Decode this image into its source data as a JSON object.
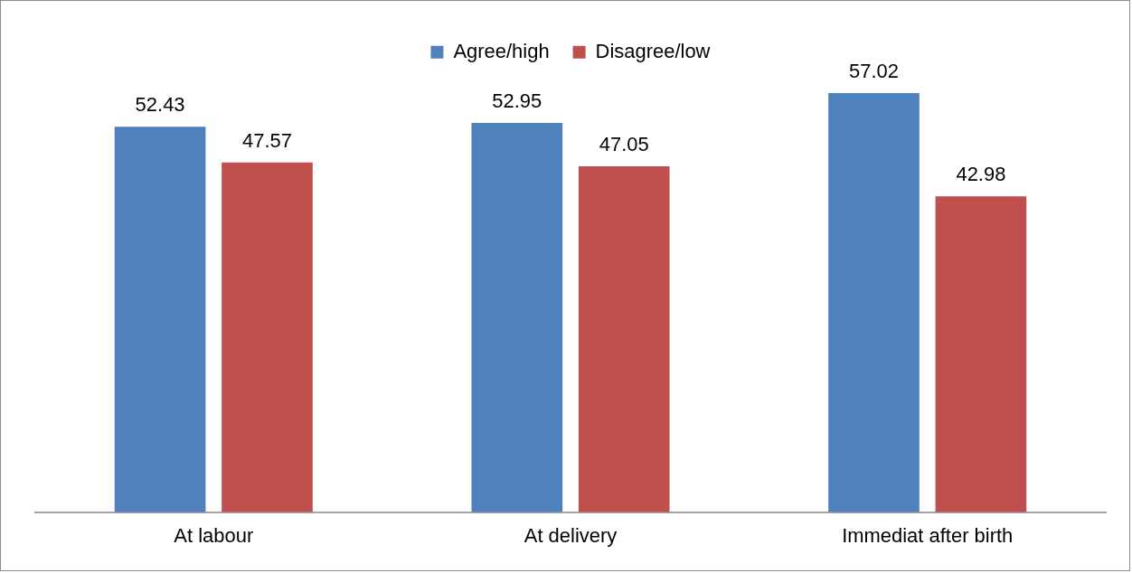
{
  "chart_data": {
    "type": "bar",
    "categories": [
      "At labour",
      "At delivery",
      "Immediat after birth"
    ],
    "series": [
      {
        "name": "Agree/high",
        "color": "#4f81bd",
        "values": [
          52.43,
          52.95,
          57.02
        ]
      },
      {
        "name": "Disagree/low",
        "color": "#c0504d",
        "values": [
          47.57,
          47.05,
          42.98
        ]
      }
    ],
    "tick_labels": "x",
    "data_labels": true,
    "grid": false,
    "legend": "top"
  }
}
